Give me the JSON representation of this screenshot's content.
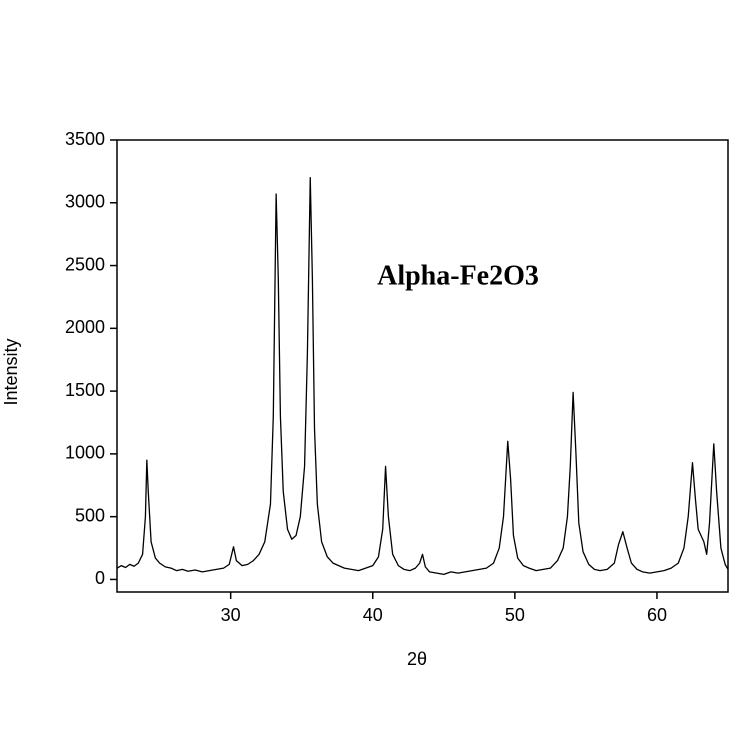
{
  "chart_data": {
    "type": "line",
    "annotation": "Alpha-Fe2O3",
    "x_label": "2θ",
    "y_label": "Intensity",
    "xlim": [
      22,
      65
    ],
    "ylim": [
      -100,
      3500
    ],
    "xticks": [
      30,
      40,
      50,
      60
    ],
    "yticks": [
      0,
      500,
      1000,
      1500,
      2000,
      2500,
      3000,
      3500
    ],
    "grid": false,
    "series": [
      {
        "color": "#000000",
        "x": [
          22.0,
          22.3,
          22.6,
          22.9,
          23.2,
          23.5,
          23.8,
          24.0,
          24.1,
          24.2,
          24.4,
          24.7,
          25.0,
          25.4,
          25.8,
          26.2,
          26.6,
          27.0,
          27.5,
          28.0,
          28.5,
          29.0,
          29.5,
          29.9,
          30.2,
          30.4,
          30.8,
          31.2,
          31.6,
          32.0,
          32.4,
          32.8,
          33.0,
          33.2,
          33.35,
          33.5,
          33.7,
          34.0,
          34.3,
          34.6,
          34.9,
          35.2,
          35.4,
          35.6,
          35.75,
          35.9,
          36.1,
          36.4,
          36.8,
          37.2,
          37.6,
          38.0,
          38.5,
          39.0,
          39.5,
          40.0,
          40.4,
          40.7,
          40.9,
          41.1,
          41.4,
          41.8,
          42.2,
          42.6,
          43.0,
          43.3,
          43.5,
          43.7,
          44.0,
          44.5,
          45.0,
          45.5,
          46.0,
          46.5,
          47.0,
          47.5,
          48.0,
          48.5,
          48.9,
          49.2,
          49.5,
          49.7,
          49.9,
          50.2,
          50.6,
          51.0,
          51.5,
          52.0,
          52.5,
          53.0,
          53.4,
          53.7,
          53.9,
          54.1,
          54.3,
          54.5,
          54.8,
          55.2,
          55.6,
          56.0,
          56.5,
          57.0,
          57.3,
          57.6,
          57.9,
          58.2,
          58.6,
          59.0,
          59.5,
          60.0,
          60.5,
          61.0,
          61.5,
          61.9,
          62.2,
          62.5,
          62.7,
          62.9,
          63.1,
          63.3,
          63.5,
          63.7,
          64.0,
          64.2,
          64.5,
          64.8,
          65.0
        ],
        "values": [
          90,
          110,
          95,
          120,
          105,
          130,
          200,
          500,
          950,
          700,
          300,
          170,
          130,
          100,
          90,
          70,
          80,
          65,
          75,
          60,
          70,
          80,
          90,
          120,
          260,
          150,
          110,
          120,
          150,
          200,
          300,
          600,
          1300,
          3070,
          2400,
          1300,
          700,
          400,
          320,
          350,
          500,
          900,
          1800,
          3200,
          2400,
          1200,
          600,
          300,
          180,
          130,
          110,
          90,
          80,
          70,
          90,
          110,
          180,
          400,
          900,
          500,
          200,
          110,
          80,
          70,
          90,
          130,
          200,
          100,
          60,
          50,
          40,
          60,
          50,
          60,
          70,
          80,
          90,
          130,
          250,
          500,
          1100,
          800,
          350,
          170,
          110,
          90,
          70,
          80,
          90,
          150,
          250,
          500,
          900,
          1490,
          1000,
          450,
          220,
          120,
          80,
          70,
          80,
          130,
          280,
          380,
          250,
          130,
          80,
          60,
          50,
          60,
          70,
          90,
          130,
          250,
          500,
          930,
          650,
          400,
          350,
          300,
          200,
          450,
          1080,
          700,
          250,
          120,
          80
        ]
      }
    ]
  }
}
